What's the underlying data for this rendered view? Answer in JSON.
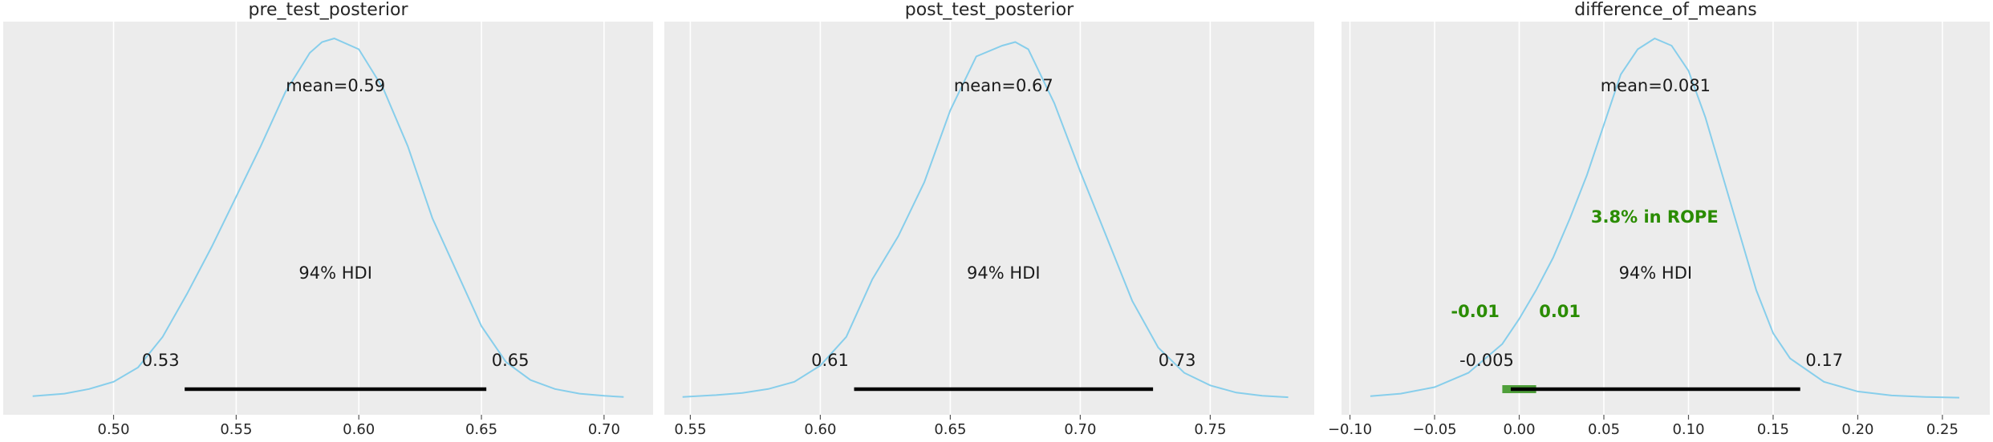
{
  "chart_data": [
    {
      "type": "area",
      "title": "pre_test_posterior",
      "xlim": [
        0.455,
        0.72
      ],
      "xticks": [
        0.5,
        0.55,
        0.6,
        0.65,
        0.7
      ],
      "xtick_labels": [
        "0.50",
        "0.55",
        "0.60",
        "0.65",
        "0.70"
      ],
      "grid": true,
      "density": {
        "x": [
          0.467,
          0.48,
          0.49,
          0.5,
          0.51,
          0.52,
          0.53,
          0.54,
          0.55,
          0.56,
          0.57,
          0.58,
          0.585,
          0.59,
          0.6,
          0.61,
          0.62,
          0.63,
          0.64,
          0.65,
          0.66,
          0.67,
          0.68,
          0.69,
          0.7,
          0.708
        ],
        "y": [
          0.005,
          0.012,
          0.025,
          0.045,
          0.085,
          0.17,
          0.29,
          0.42,
          0.56,
          0.7,
          0.85,
          0.96,
          0.99,
          1.0,
          0.97,
          0.86,
          0.7,
          0.5,
          0.35,
          0.2,
          0.1,
          0.05,
          0.025,
          0.012,
          0.006,
          0.003
        ]
      },
      "mean_label": "mean=0.59",
      "hdi_label": "94% HDI",
      "hdi": [
        0.529,
        0.652
      ],
      "hdi_labels": [
        "0.53",
        "0.65"
      ],
      "colors": {
        "density": "#87ceeb",
        "hdi": "#000000",
        "background": "#ececec"
      }
    },
    {
      "type": "area",
      "title": "post_test_posterior",
      "xlim": [
        0.54,
        0.79
      ],
      "xticks": [
        0.55,
        0.6,
        0.65,
        0.7,
        0.75
      ],
      "xtick_labels": [
        "0.55",
        "0.60",
        "0.65",
        "0.70",
        "0.75"
      ],
      "grid": true,
      "density": {
        "x": [
          0.547,
          0.56,
          0.57,
          0.58,
          0.59,
          0.6,
          0.61,
          0.62,
          0.63,
          0.64,
          0.65,
          0.66,
          0.67,
          0.675,
          0.68,
          0.69,
          0.7,
          0.71,
          0.72,
          0.73,
          0.74,
          0.75,
          0.76,
          0.77,
          0.78
        ],
        "y": [
          0.003,
          0.008,
          0.014,
          0.025,
          0.045,
          0.09,
          0.17,
          0.33,
          0.45,
          0.6,
          0.8,
          0.95,
          0.98,
          0.99,
          0.97,
          0.82,
          0.63,
          0.45,
          0.27,
          0.14,
          0.07,
          0.035,
          0.015,
          0.006,
          0.002
        ]
      },
      "mean_label": "mean=0.67",
      "hdi_label": "94% HDI",
      "hdi": [
        0.613,
        0.728
      ],
      "hdi_labels": [
        "0.61",
        "0.73"
      ],
      "colors": {
        "density": "#87ceeb",
        "hdi": "#000000",
        "background": "#ececec"
      }
    },
    {
      "type": "area",
      "title": "difference_of_means",
      "xlim": [
        -0.105,
        0.278
      ],
      "xticks": [
        -0.1,
        -0.05,
        0.0,
        0.05,
        0.1,
        0.15,
        0.2,
        0.25
      ],
      "xtick_labels": [
        "−0.10",
        "−0.05",
        "0.00",
        "0.05",
        "0.10",
        "0.15",
        "0.20",
        "0.25"
      ],
      "grid": true,
      "density": {
        "x": [
          -0.088,
          -0.07,
          -0.05,
          -0.03,
          -0.01,
          0.0,
          0.01,
          0.02,
          0.03,
          0.04,
          0.05,
          0.06,
          0.07,
          0.08,
          0.09,
          0.1,
          0.11,
          0.12,
          0.13,
          0.14,
          0.15,
          0.16,
          0.18,
          0.2,
          0.22,
          0.24,
          0.26
        ],
        "y": [
          0.005,
          0.012,
          0.03,
          0.07,
          0.15,
          0.22,
          0.3,
          0.39,
          0.5,
          0.62,
          0.76,
          0.9,
          0.97,
          1.0,
          0.98,
          0.91,
          0.78,
          0.62,
          0.46,
          0.3,
          0.18,
          0.11,
          0.045,
          0.018,
          0.007,
          0.003,
          0.001
        ]
      },
      "mean_label": "mean=0.081",
      "hdi_label": "94% HDI",
      "hdi": [
        -0.005,
        0.166
      ],
      "hdi_labels": [
        "-0.005",
        "0.17"
      ],
      "rope": [
        -0.01,
        0.01
      ],
      "rope_labels": [
        "-0.01",
        "0.01"
      ],
      "rope_text": "3.8% in ROPE",
      "colors": {
        "density": "#87ceeb",
        "hdi": "#000000",
        "background": "#ececec",
        "rope": "#2a8c00",
        "rope_bar": "#4f9f3a"
      }
    }
  ]
}
